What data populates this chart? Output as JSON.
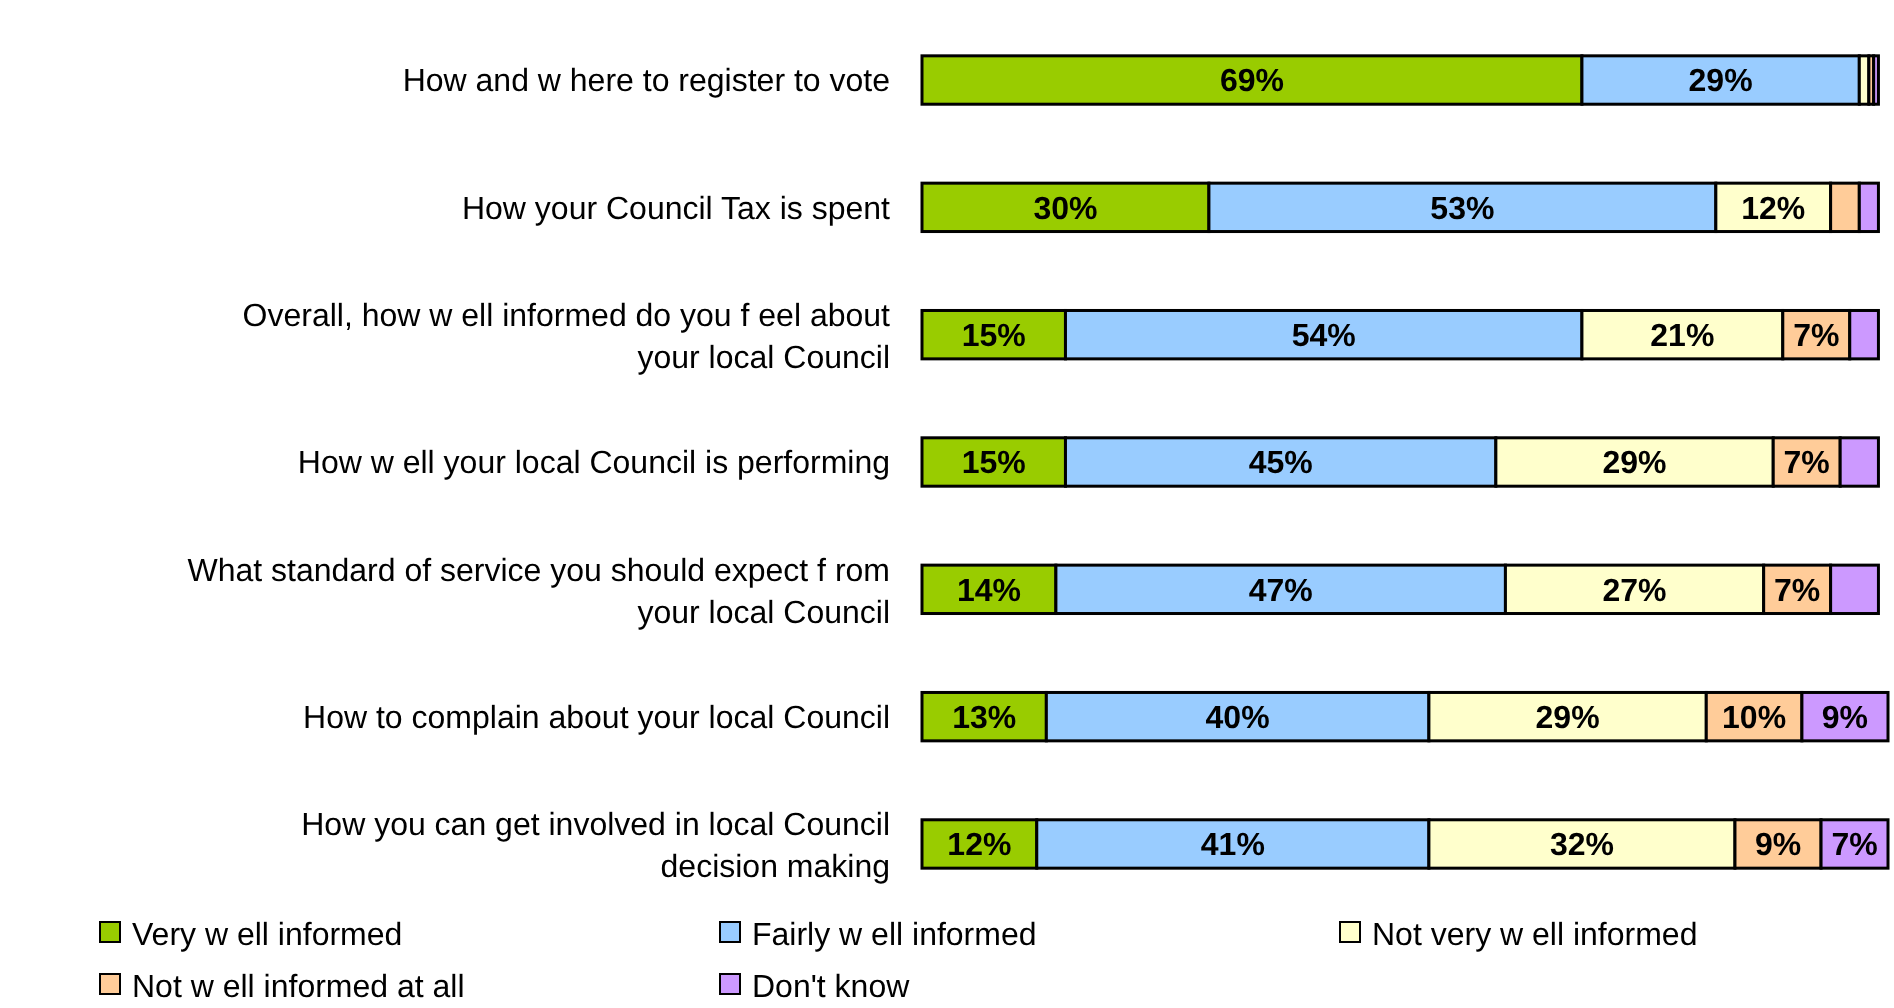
{
  "chart_data": {
    "type": "bar",
    "orientation": "horizontal",
    "stacked": true,
    "legend": "bottom",
    "categories": [
      "How and w here to register to vote",
      "How your Council Tax is spent",
      "Overall, how w ell informed do you f eel about your local Council",
      "How w ell your local Council is performing",
      "What standard of service you should expect f rom your local Council",
      "How to complain about your local Council",
      "How you can get involved in local Council decision making"
    ],
    "series": [
      {
        "name": "Very w ell informed",
        "color": "#99cc00",
        "values": [
          69,
          30,
          15,
          15,
          14,
          13,
          12
        ],
        "value_labels": [
          "69%",
          "30%",
          "15%",
          "15%",
          "14%",
          "13%",
          "12%"
        ]
      },
      {
        "name": "Fairly w ell informed",
        "color": "#99ccff",
        "values": [
          29,
          53,
          54,
          45,
          47,
          40,
          41
        ],
        "value_labels": [
          "29%",
          "53%",
          "54%",
          "45%",
          "47%",
          "40%",
          "41%"
        ]
      },
      {
        "name": "Not very w ell informed",
        "color": "#ffffcc",
        "values": [
          1,
          12,
          21,
          29,
          27,
          29,
          32
        ],
        "value_labels": [
          null,
          "12%",
          "21%",
          "29%",
          "27%",
          "29%",
          "32%"
        ]
      },
      {
        "name": "Not w ell informed at all",
        "color": "#ffcc99",
        "values": [
          0.5,
          3,
          7,
          7,
          7,
          10,
          9
        ],
        "value_labels": [
          null,
          null,
          "7%",
          "7%",
          "7%",
          "10%",
          "9%"
        ]
      },
      {
        "name": "Don't know",
        "color": "#cc99ff",
        "values": [
          0.5,
          2,
          3,
          4,
          5,
          9,
          7
        ],
        "value_labels": [
          null,
          null,
          null,
          null,
          null,
          "9%",
          "7%"
        ]
      }
    ]
  }
}
